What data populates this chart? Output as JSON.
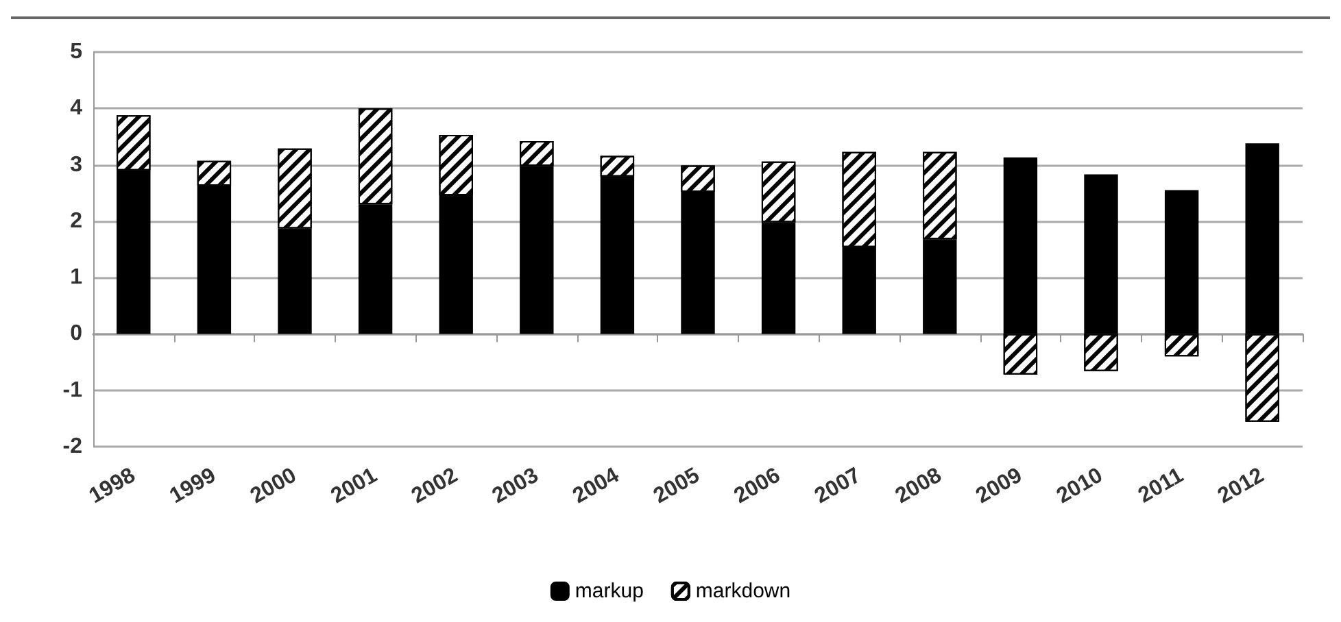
{
  "chart_data": {
    "type": "bar",
    "stacked": true,
    "categories": [
      "1998",
      "1999",
      "2000",
      "2001",
      "2002",
      "2003",
      "2004",
      "2005",
      "2006",
      "2007",
      "2008",
      "2009",
      "2010",
      "2011",
      "2012"
    ],
    "series": [
      {
        "name": "markup",
        "color": "#000000",
        "values": [
          2.9,
          2.63,
          1.87,
          2.3,
          2.46,
          2.98,
          2.79,
          2.52,
          1.98,
          1.54,
          1.68,
          3.13,
          2.83,
          2.55,
          3.38
        ]
      },
      {
        "name": "markdown",
        "color": "#ffffff",
        "values": [
          0.98,
          0.44,
          1.42,
          1.7,
          1.07,
          0.44,
          0.37,
          0.47,
          1.08,
          1.69,
          1.55,
          -0.72,
          -0.66,
          -0.4,
          -1.56
        ]
      }
    ],
    "ylim": [
      -2,
      5
    ],
    "yticks": [
      -2,
      -1,
      0,
      1,
      2,
      3,
      4,
      5
    ],
    "grid": "y",
    "legend": "bottom"
  }
}
